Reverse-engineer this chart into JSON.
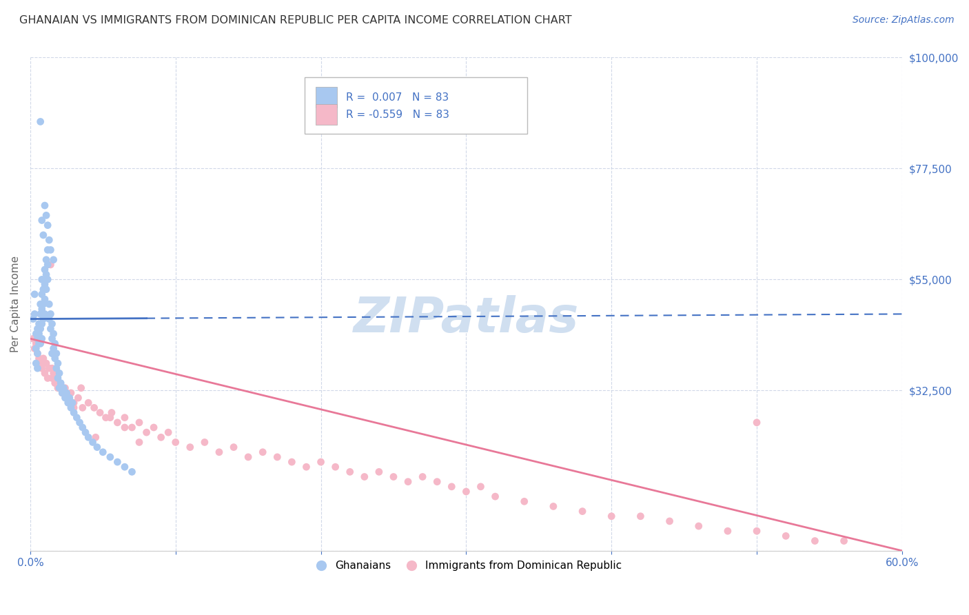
{
  "title": "GHANAIAN VS IMMIGRANTS FROM DOMINICAN REPUBLIC PER CAPITA INCOME CORRELATION CHART",
  "source": "Source: ZipAtlas.com",
  "ylabel": "Per Capita Income",
  "xlim": [
    0.0,
    0.6
  ],
  "ylim": [
    0,
    100000
  ],
  "yticks": [
    0,
    32500,
    55000,
    77500,
    100000
  ],
  "ytick_labels": [
    "",
    "$32,500",
    "$55,000",
    "$77,500",
    "$100,000"
  ],
  "xticks": [
    0.0,
    0.1,
    0.2,
    0.3,
    0.4,
    0.5,
    0.6
  ],
  "xtick_labels": [
    "0.0%",
    "",
    "",
    "",
    "",
    "",
    "60.0%"
  ],
  "blue_color": "#a8c8f0",
  "pink_color": "#f5b8c8",
  "blue_line_color": "#4472c4",
  "pink_line_color": "#e87898",
  "axis_color": "#4472c4",
  "title_color": "#333333",
  "source_color": "#4472c4",
  "grid_color": "#d0d8e8",
  "watermark_color": "#d0dff0",
  "legend_label_blue": "Ghanaians",
  "legend_label_pink": "Immigrants from Dominican Republic",
  "watermark": "ZIPatlas",
  "blue_x": [
    0.002,
    0.003,
    0.003,
    0.004,
    0.004,
    0.004,
    0.005,
    0.005,
    0.005,
    0.005,
    0.006,
    0.006,
    0.006,
    0.007,
    0.007,
    0.007,
    0.007,
    0.008,
    0.008,
    0.008,
    0.008,
    0.008,
    0.009,
    0.009,
    0.009,
    0.01,
    0.01,
    0.01,
    0.01,
    0.011,
    0.011,
    0.011,
    0.012,
    0.012,
    0.012,
    0.013,
    0.013,
    0.014,
    0.014,
    0.015,
    0.015,
    0.015,
    0.016,
    0.016,
    0.017,
    0.017,
    0.018,
    0.018,
    0.019,
    0.019,
    0.02,
    0.02,
    0.021,
    0.022,
    0.023,
    0.024,
    0.025,
    0.026,
    0.027,
    0.028,
    0.029,
    0.03,
    0.032,
    0.034,
    0.036,
    0.038,
    0.04,
    0.043,
    0.046,
    0.05,
    0.055,
    0.06,
    0.065,
    0.07,
    0.007,
    0.008,
    0.009,
    0.01,
    0.011,
    0.012,
    0.013,
    0.014,
    0.016
  ],
  "blue_y": [
    47000,
    52000,
    48000,
    44000,
    41000,
    38000,
    45000,
    43000,
    40000,
    37000,
    46000,
    44000,
    42000,
    50000,
    48000,
    45000,
    42000,
    55000,
    52000,
    49000,
    46000,
    43000,
    53000,
    50000,
    47000,
    57000,
    54000,
    51000,
    48000,
    59000,
    56000,
    53000,
    61000,
    58000,
    55000,
    50000,
    47000,
    48000,
    45000,
    46000,
    43000,
    40000,
    44000,
    41000,
    42000,
    39000,
    40000,
    37000,
    38000,
    35000,
    36000,
    33000,
    34000,
    32000,
    33000,
    31000,
    32000,
    30000,
    31000,
    29000,
    30000,
    28000,
    27000,
    26000,
    25000,
    24000,
    23000,
    22000,
    21000,
    20000,
    19000,
    18000,
    17000,
    16000,
    87000,
    67000,
    64000,
    70000,
    68000,
    66000,
    63000,
    61000,
    59000
  ],
  "pink_x": [
    0.002,
    0.003,
    0.004,
    0.005,
    0.006,
    0.007,
    0.008,
    0.009,
    0.01,
    0.011,
    0.012,
    0.013,
    0.014,
    0.015,
    0.016,
    0.017,
    0.018,
    0.019,
    0.02,
    0.022,
    0.024,
    0.026,
    0.028,
    0.03,
    0.033,
    0.036,
    0.04,
    0.044,
    0.048,
    0.052,
    0.056,
    0.06,
    0.065,
    0.07,
    0.075,
    0.08,
    0.085,
    0.09,
    0.095,
    0.1,
    0.11,
    0.12,
    0.13,
    0.14,
    0.15,
    0.16,
    0.17,
    0.18,
    0.19,
    0.2,
    0.21,
    0.22,
    0.23,
    0.24,
    0.25,
    0.26,
    0.27,
    0.28,
    0.29,
    0.3,
    0.31,
    0.32,
    0.34,
    0.36,
    0.38,
    0.4,
    0.42,
    0.44,
    0.46,
    0.48,
    0.5,
    0.52,
    0.54,
    0.56,
    0.035,
    0.055,
    0.075,
    0.065,
    0.025,
    0.03,
    0.045,
    0.015,
    0.5
  ],
  "pink_y": [
    43000,
    41000,
    42000,
    40000,
    39000,
    38000,
    37000,
    39000,
    36000,
    38000,
    35000,
    37000,
    58000,
    35000,
    36000,
    34000,
    35000,
    33000,
    34000,
    32000,
    33000,
    31000,
    32000,
    30000,
    31000,
    29000,
    30000,
    29000,
    28000,
    27000,
    28000,
    26000,
    27000,
    25000,
    26000,
    24000,
    25000,
    23000,
    24000,
    22000,
    21000,
    22000,
    20000,
    21000,
    19000,
    20000,
    19000,
    18000,
    17000,
    18000,
    17000,
    16000,
    15000,
    16000,
    15000,
    14000,
    15000,
    14000,
    13000,
    12000,
    13000,
    11000,
    10000,
    9000,
    8000,
    7000,
    7000,
    6000,
    5000,
    4000,
    4000,
    3000,
    2000,
    2000,
    33000,
    27000,
    22000,
    25000,
    31000,
    29000,
    23000,
    37000,
    26000
  ],
  "blue_line_start_x": 0.0,
  "blue_line_end_x": 0.6,
  "blue_line_solid_end": 0.08,
  "blue_line_y_at_0": 47000,
  "blue_line_y_at_60": 48000,
  "pink_line_y_at_0": 43000,
  "pink_line_y_at_60": 0
}
